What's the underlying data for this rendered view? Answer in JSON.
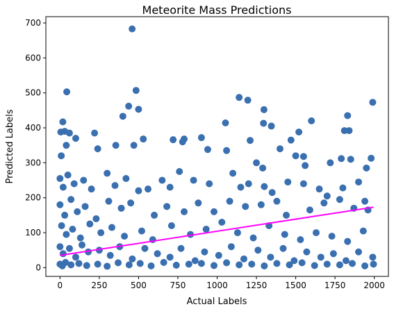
{
  "chart_data": {
    "type": "scatter",
    "title": "Meteorite Mass Predictions",
    "xlabel": "Actual Labels",
    "ylabel": "Predicted Labels",
    "xlim": [
      -90,
      2090
    ],
    "ylim": [
      -25,
      718
    ],
    "xticks": [
      0,
      250,
      500,
      750,
      1000,
      1250,
      1500,
      1750,
      2000
    ],
    "yticks": [
      0,
      100,
      200,
      300,
      400,
      500,
      600,
      700
    ],
    "grid": false,
    "legend": "none",
    "point_color": "#3a6fb0",
    "trend_color": "#ff00ff",
    "series": [
      {
        "kind": "scatter",
        "points": [
          [
            459,
            683
          ],
          [
            43,
            503
          ],
          [
            484,
            507
          ],
          [
            500,
            453
          ],
          [
            1140,
            487
          ],
          [
            1195,
            479
          ],
          [
            437,
            462
          ],
          [
            400,
            433
          ],
          [
            1298,
            452
          ],
          [
            1990,
            473
          ],
          [
            1830,
            435
          ],
          [
            18,
            417
          ],
          [
            5,
            388
          ],
          [
            30,
            390
          ],
          [
            60,
            385
          ],
          [
            1053,
            414
          ],
          [
            1295,
            413
          ],
          [
            1345,
            405
          ],
          [
            1600,
            420
          ],
          [
            1810,
            392
          ],
          [
            1840,
            392
          ],
          [
            1520,
            388
          ],
          [
            220,
            385
          ],
          [
            8,
            320
          ],
          [
            40,
            350
          ],
          [
            100,
            370
          ],
          [
            240,
            340
          ],
          [
            355,
            350
          ],
          [
            470,
            350
          ],
          [
            530,
            368
          ],
          [
            720,
            366
          ],
          [
            780,
            360
          ],
          [
            790,
            368
          ],
          [
            900,
            372
          ],
          [
            940,
            338
          ],
          [
            1060,
            335
          ],
          [
            1100,
            270
          ],
          [
            1210,
            364
          ],
          [
            1250,
            300
          ],
          [
            1290,
            285
          ],
          [
            1400,
            340
          ],
          [
            1470,
            365
          ],
          [
            1500,
            320
          ],
          [
            1550,
            318
          ],
          [
            1560,
            292
          ],
          [
            1720,
            300
          ],
          [
            1790,
            312
          ],
          [
            1850,
            310
          ],
          [
            1950,
            285
          ],
          [
            1980,
            313
          ],
          [
            0,
            255
          ],
          [
            20,
            230
          ],
          [
            50,
            265
          ],
          [
            90,
            240
          ],
          [
            150,
            250
          ],
          [
            200,
            225
          ],
          [
            300,
            270
          ],
          [
            350,
            235
          ],
          [
            420,
            255
          ],
          [
            500,
            220
          ],
          [
            560,
            225
          ],
          [
            650,
            250
          ],
          [
            700,
            230
          ],
          [
            760,
            275
          ],
          [
            850,
            250
          ],
          [
            950,
            240
          ],
          [
            1150,
            230
          ],
          [
            1200,
            240
          ],
          [
            1300,
            232
          ],
          [
            1350,
            215
          ],
          [
            1450,
            245
          ],
          [
            1550,
            240
          ],
          [
            1650,
            225
          ],
          [
            1700,
            205
          ],
          [
            1800,
            228
          ],
          [
            1900,
            245
          ],
          [
            1940,
            190
          ],
          [
            0,
            180
          ],
          [
            30,
            150
          ],
          [
            70,
            195
          ],
          [
            110,
            160
          ],
          [
            160,
            175
          ],
          [
            230,
            140
          ],
          [
            310,
            190
          ],
          [
            390,
            170
          ],
          [
            450,
            185
          ],
          [
            600,
            150
          ],
          [
            680,
            175
          ],
          [
            790,
            160
          ],
          [
            880,
            185
          ],
          [
            980,
            160
          ],
          [
            1080,
            190
          ],
          [
            1180,
            175
          ],
          [
            1280,
            180
          ],
          [
            1380,
            190
          ],
          [
            1440,
            150
          ],
          [
            1590,
            165
          ],
          [
            1680,
            185
          ],
          [
            1780,
            195
          ],
          [
            1870,
            170
          ],
          [
            1960,
            165
          ],
          [
            10,
            120
          ],
          [
            40,
            95
          ],
          [
            80,
            110
          ],
          [
            130,
            85
          ],
          [
            190,
            125
          ],
          [
            260,
            100
          ],
          [
            330,
            115
          ],
          [
            410,
            90
          ],
          [
            520,
            105
          ],
          [
            590,
            80
          ],
          [
            710,
            120
          ],
          [
            830,
            95
          ],
          [
            930,
            110
          ],
          [
            1030,
            130
          ],
          [
            1130,
            100
          ],
          [
            1230,
            85
          ],
          [
            1330,
            120
          ],
          [
            1430,
            95
          ],
          [
            1530,
            80
          ],
          [
            1630,
            100
          ],
          [
            1730,
            90
          ],
          [
            1830,
            75
          ],
          [
            1930,
            105
          ],
          [
            0,
            60
          ],
          [
            20,
            40
          ],
          [
            60,
            55
          ],
          [
            100,
            30
          ],
          [
            140,
            65
          ],
          [
            180,
            45
          ],
          [
            250,
            50
          ],
          [
            320,
            35
          ],
          [
            380,
            60
          ],
          [
            460,
            25
          ],
          [
            540,
            55
          ],
          [
            620,
            40
          ],
          [
            700,
            30
          ],
          [
            770,
            55
          ],
          [
            860,
            20
          ],
          [
            920,
            45
          ],
          [
            1010,
            35
          ],
          [
            1090,
            60
          ],
          [
            1170,
            25
          ],
          [
            1260,
            50
          ],
          [
            1340,
            30
          ],
          [
            1420,
            55
          ],
          [
            1490,
            20
          ],
          [
            1570,
            45
          ],
          [
            1660,
            30
          ],
          [
            1740,
            40
          ],
          [
            1820,
            20
          ],
          [
            1900,
            45
          ],
          [
            1990,
            30
          ],
          [
            0,
            10
          ],
          [
            15,
            5
          ],
          [
            35,
            15
          ],
          [
            70,
            8
          ],
          [
            120,
            12
          ],
          [
            170,
            6
          ],
          [
            240,
            10
          ],
          [
            300,
            4
          ],
          [
            370,
            14
          ],
          [
            440,
            8
          ],
          [
            510,
            12
          ],
          [
            580,
            5
          ],
          [
            660,
            15
          ],
          [
            740,
            7
          ],
          [
            820,
            10
          ],
          [
            900,
            12
          ],
          [
            980,
            6
          ],
          [
            1060,
            14
          ],
          [
            1140,
            8
          ],
          [
            1220,
            10
          ],
          [
            1300,
            5
          ],
          [
            1380,
            12
          ],
          [
            1460,
            8
          ],
          [
            1540,
            14
          ],
          [
            1620,
            6
          ],
          [
            1700,
            10
          ],
          [
            1780,
            8
          ],
          [
            1860,
            12
          ],
          [
            1940,
            5
          ],
          [
            1995,
            10
          ]
        ]
      },
      {
        "kind": "line",
        "points": [
          [
            0,
            35
          ],
          [
            1995,
            173
          ]
        ]
      }
    ]
  }
}
